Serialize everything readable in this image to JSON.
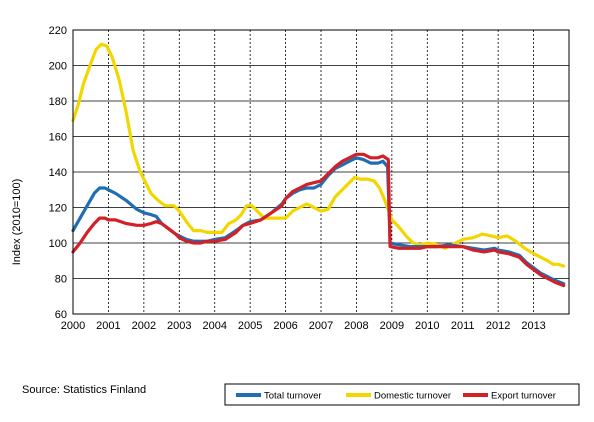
{
  "chart_data": {
    "type": "line",
    "ylabel": "Index (2010=100)",
    "ylim": [
      60,
      220
    ],
    "yticks": [
      60,
      80,
      100,
      120,
      140,
      160,
      180,
      200,
      220
    ],
    "xlim": [
      2000,
      2014
    ],
    "xticks": [
      "2000",
      "2001",
      "2002",
      "2003",
      "2004",
      "2005",
      "2006",
      "2007",
      "2008",
      "2009",
      "2010",
      "2011",
      "2012",
      "2013"
    ],
    "grid": "vertical dashed at each year, horizontal solid at each y tick",
    "legend_position": "bottom-right",
    "source": "Source: Statistics Finland",
    "series": [
      {
        "name": "Total turnover",
        "color": "#1F6EB4",
        "points": [
          [
            2000.0,
            107
          ],
          [
            2000.2,
            114
          ],
          [
            2000.4,
            121
          ],
          [
            2000.6,
            128
          ],
          [
            2000.75,
            131
          ],
          [
            2000.9,
            131
          ],
          [
            2001.0,
            130
          ],
          [
            2001.2,
            128
          ],
          [
            2001.5,
            124
          ],
          [
            2001.8,
            119
          ],
          [
            2002.0,
            117
          ],
          [
            2002.2,
            116
          ],
          [
            2002.35,
            115
          ],
          [
            2002.5,
            111
          ],
          [
            2002.7,
            108
          ],
          [
            2002.9,
            105
          ],
          [
            2003.0,
            104
          ],
          [
            2003.2,
            102
          ],
          [
            2003.4,
            101
          ],
          [
            2003.6,
            101
          ],
          [
            2003.8,
            101
          ],
          [
            2004.0,
            102
          ],
          [
            2004.3,
            103
          ],
          [
            2004.6,
            107
          ],
          [
            2004.8,
            110
          ],
          [
            2005.0,
            112
          ],
          [
            2005.3,
            113
          ],
          [
            2005.6,
            117
          ],
          [
            2005.9,
            122
          ],
          [
            2006.0,
            125
          ],
          [
            2006.2,
            128
          ],
          [
            2006.4,
            130
          ],
          [
            2006.6,
            131
          ],
          [
            2006.8,
            131
          ],
          [
            2007.0,
            133
          ],
          [
            2007.2,
            138
          ],
          [
            2007.4,
            142
          ],
          [
            2007.6,
            144
          ],
          [
            2007.8,
            146
          ],
          [
            2008.0,
            148
          ],
          [
            2008.2,
            147
          ],
          [
            2008.4,
            145
          ],
          [
            2008.6,
            145
          ],
          [
            2008.75,
            146
          ],
          [
            2008.88,
            143
          ],
          [
            2008.95,
            100
          ],
          [
            2009.2,
            99
          ],
          [
            2009.5,
            98
          ],
          [
            2009.8,
            98
          ],
          [
            2010.0,
            98
          ],
          [
            2010.3,
            98
          ],
          [
            2010.6,
            99
          ],
          [
            2011.0,
            98
          ],
          [
            2011.3,
            97
          ],
          [
            2011.6,
            96
          ],
          [
            2011.9,
            97
          ],
          [
            2012.0,
            96
          ],
          [
            2012.3,
            95
          ],
          [
            2012.6,
            93
          ],
          [
            2012.8,
            89
          ],
          [
            2013.0,
            86
          ],
          [
            2013.2,
            83
          ],
          [
            2013.4,
            81
          ],
          [
            2013.6,
            79
          ],
          [
            2013.85,
            77
          ]
        ]
      },
      {
        "name": "Domestic turnover",
        "color": "#F2D600",
        "points": [
          [
            2000.0,
            169
          ],
          [
            2000.15,
            178
          ],
          [
            2000.3,
            190
          ],
          [
            2000.5,
            201
          ],
          [
            2000.65,
            209
          ],
          [
            2000.8,
            212
          ],
          [
            2000.95,
            211
          ],
          [
            2001.1,
            205
          ],
          [
            2001.3,
            192
          ],
          [
            2001.5,
            174
          ],
          [
            2001.7,
            152
          ],
          [
            2001.9,
            140
          ],
          [
            2002.0,
            136
          ],
          [
            2002.2,
            128
          ],
          [
            2002.4,
            124
          ],
          [
            2002.6,
            121
          ],
          [
            2002.85,
            121
          ],
          [
            2003.0,
            118
          ],
          [
            2003.2,
            112
          ],
          [
            2003.4,
            107
          ],
          [
            2003.6,
            107
          ],
          [
            2003.8,
            106
          ],
          [
            2004.0,
            106
          ],
          [
            2004.2,
            106
          ],
          [
            2004.4,
            111
          ],
          [
            2004.6,
            113
          ],
          [
            2004.75,
            116
          ],
          [
            2004.9,
            121
          ],
          [
            2005.05,
            121
          ],
          [
            2005.2,
            118
          ],
          [
            2005.4,
            114
          ],
          [
            2005.6,
            114
          ],
          [
            2005.8,
            114
          ],
          [
            2006.0,
            114
          ],
          [
            2006.2,
            118
          ],
          [
            2006.4,
            120
          ],
          [
            2006.6,
            122
          ],
          [
            2006.8,
            120
          ],
          [
            2007.0,
            118
          ],
          [
            2007.2,
            119
          ],
          [
            2007.4,
            126
          ],
          [
            2007.6,
            130
          ],
          [
            2007.8,
            134
          ],
          [
            2007.95,
            137
          ],
          [
            2008.1,
            136
          ],
          [
            2008.3,
            136
          ],
          [
            2008.5,
            135
          ],
          [
            2008.65,
            131
          ],
          [
            2008.8,
            124
          ],
          [
            2009.0,
            113
          ],
          [
            2009.2,
            109
          ],
          [
            2009.4,
            104
          ],
          [
            2009.6,
            100
          ],
          [
            2009.8,
            99
          ],
          [
            2010.0,
            100
          ],
          [
            2010.3,
            99
          ],
          [
            2010.5,
            97
          ],
          [
            2010.8,
            100
          ],
          [
            2011.0,
            102
          ],
          [
            2011.3,
            103
          ],
          [
            2011.55,
            105
          ],
          [
            2011.8,
            104
          ],
          [
            2012.0,
            103
          ],
          [
            2012.25,
            104
          ],
          [
            2012.5,
            101
          ],
          [
            2012.75,
            97
          ],
          [
            2013.0,
            94
          ],
          [
            2013.2,
            92
          ],
          [
            2013.4,
            90
          ],
          [
            2013.55,
            88
          ],
          [
            2013.7,
            88
          ],
          [
            2013.85,
            87
          ]
        ]
      },
      {
        "name": "Export turnover",
        "color": "#D32027",
        "points": [
          [
            2000.0,
            95
          ],
          [
            2000.2,
            100
          ],
          [
            2000.4,
            106
          ],
          [
            2000.6,
            111
          ],
          [
            2000.75,
            114
          ],
          [
            2000.9,
            114
          ],
          [
            2001.0,
            113
          ],
          [
            2001.2,
            113
          ],
          [
            2001.5,
            111
          ],
          [
            2001.8,
            110
          ],
          [
            2002.0,
            110
          ],
          [
            2002.2,
            111
          ],
          [
            2002.35,
            112
          ],
          [
            2002.5,
            111
          ],
          [
            2002.7,
            108
          ],
          [
            2002.9,
            105
          ],
          [
            2003.0,
            103
          ],
          [
            2003.2,
            101
          ],
          [
            2003.4,
            100
          ],
          [
            2003.6,
            100
          ],
          [
            2003.8,
            101
          ],
          [
            2004.0,
            101
          ],
          [
            2004.3,
            102
          ],
          [
            2004.6,
            106
          ],
          [
            2004.8,
            110
          ],
          [
            2005.0,
            111
          ],
          [
            2005.3,
            113
          ],
          [
            2005.6,
            117
          ],
          [
            2005.9,
            121
          ],
          [
            2006.0,
            125
          ],
          [
            2006.2,
            129
          ],
          [
            2006.4,
            131
          ],
          [
            2006.6,
            133
          ],
          [
            2006.8,
            134
          ],
          [
            2007.0,
            135
          ],
          [
            2007.2,
            139
          ],
          [
            2007.4,
            143
          ],
          [
            2007.6,
            146
          ],
          [
            2007.8,
            148
          ],
          [
            2008.0,
            150
          ],
          [
            2008.2,
            150
          ],
          [
            2008.4,
            148
          ],
          [
            2008.6,
            148
          ],
          [
            2008.75,
            149
          ],
          [
            2008.9,
            147
          ],
          [
            2008.95,
            98
          ],
          [
            2009.2,
            97
          ],
          [
            2009.5,
            97
          ],
          [
            2009.8,
            97
          ],
          [
            2010.0,
            98
          ],
          [
            2010.3,
            98
          ],
          [
            2010.6,
            98
          ],
          [
            2011.0,
            98
          ],
          [
            2011.3,
            96
          ],
          [
            2011.6,
            95
          ],
          [
            2011.9,
            96
          ],
          [
            2012.0,
            95
          ],
          [
            2012.3,
            94
          ],
          [
            2012.6,
            92
          ],
          [
            2012.8,
            88
          ],
          [
            2013.0,
            85
          ],
          [
            2013.2,
            82
          ],
          [
            2013.4,
            80
          ],
          [
            2013.6,
            78
          ],
          [
            2013.85,
            76
          ]
        ]
      }
    ]
  }
}
